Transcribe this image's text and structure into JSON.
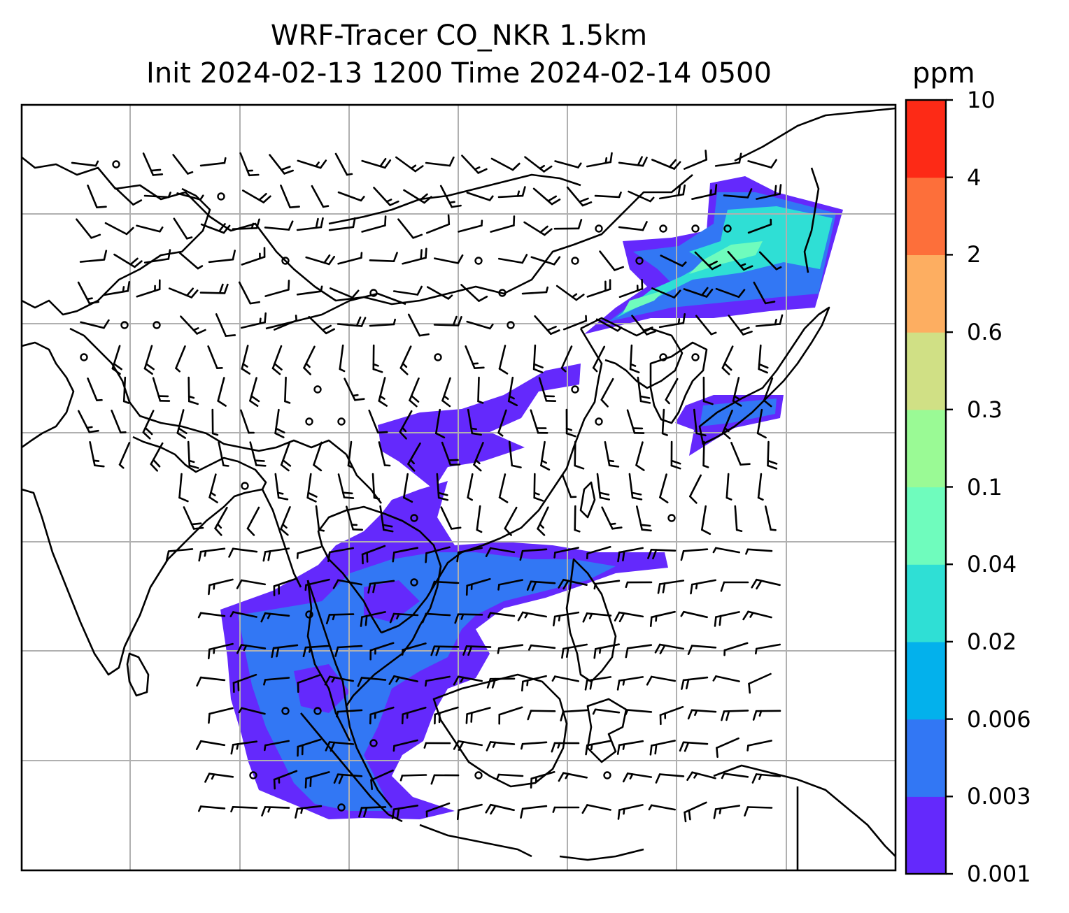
{
  "title_line1": "WRF-Tracer CO_NKR 1.5km",
  "title_line2": "Init 2024-02-13 1200 Time 2024-02-14 0500",
  "colorbar": {
    "unit": "ppm",
    "tick_labels": [
      "0.001",
      "0.003",
      "0.006",
      "0.02",
      "0.04",
      "0.1",
      "0.3",
      "0.6",
      "2",
      "4",
      "10"
    ],
    "colors": [
      "#6429fc",
      "#3277f4",
      "#03b1ec",
      "#2fdfd5",
      "#6ffcbd",
      "#9afa95",
      "#d0e085",
      "#fdae61",
      "#fd6f3a",
      "#fd2a16"
    ]
  },
  "plume_colors": {
    "low": "#6429fc",
    "mid": "#3277f4",
    "cyan": "#2fdfd5",
    "light": "#6ffcbd"
  },
  "map": {
    "gridlines": true,
    "coastlines": true,
    "overlay": "wind-barbs"
  }
}
